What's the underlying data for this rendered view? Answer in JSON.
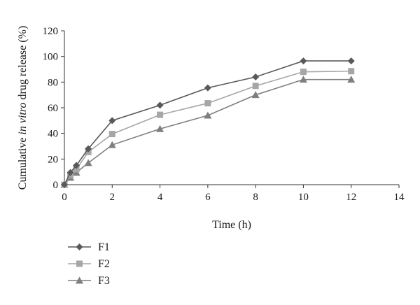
{
  "chart_data": {
    "type": "line",
    "xlabel": "Time (h)",
    "ylabel_parts": [
      "Cumulative ",
      "in vitro",
      " drug release (%)"
    ],
    "xlim": [
      0,
      14
    ],
    "ylim": [
      0,
      120
    ],
    "xticks": [
      0,
      2,
      4,
      6,
      8,
      10,
      12,
      14
    ],
    "yticks": [
      0,
      20,
      40,
      60,
      80,
      100,
      120
    ],
    "grid": false,
    "legend_position": "bottom-left",
    "x": [
      0,
      0.25,
      0.5,
      1,
      2,
      4,
      6,
      8,
      10,
      12
    ],
    "series": [
      {
        "name": "F1",
        "marker": "diamond",
        "color": "#595959",
        "values": [
          0,
          9.5,
          15,
          28,
          50,
          62,
          75.5,
          84,
          96.5,
          96.5
        ]
      },
      {
        "name": "F2",
        "marker": "square",
        "color": "#a6a6a6",
        "values": [
          0,
          7.5,
          12,
          25.5,
          39.5,
          54.5,
          63.5,
          77,
          88,
          88.5
        ]
      },
      {
        "name": "F3",
        "marker": "triangle",
        "color": "#7f7f7f",
        "values": [
          0,
          5.5,
          9.5,
          17,
          31,
          43.5,
          54,
          70,
          82,
          82
        ]
      }
    ]
  }
}
